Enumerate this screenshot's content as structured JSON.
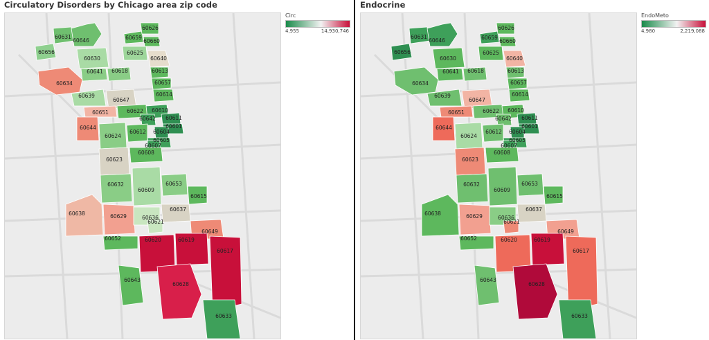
{
  "maps": [
    {
      "title": "Circulatory Disorders by Chicago area zip code",
      "legend": {
        "measure": "Circ",
        "min": "4,955",
        "max": "14,930,746",
        "low_color": "#1a8a4a",
        "mid_color": "#f2f2f2",
        "high_color": "#c8103a"
      },
      "zips": [
        {
          "zip": "60631",
          "fill": "#6fbf6f"
        },
        {
          "zip": "60646",
          "fill": "#6fbf6f"
        },
        {
          "zip": "60656",
          "fill": "#8fd08f"
        },
        {
          "zip": "60659",
          "fill": "#5db85d"
        },
        {
          "zip": "60626",
          "fill": "#5db85d"
        },
        {
          "zip": "60660",
          "fill": "#5db85d"
        },
        {
          "zip": "60625",
          "fill": "#9ed69b"
        },
        {
          "zip": "60630",
          "fill": "#a9dba5"
        },
        {
          "zip": "60640",
          "fill": "#e6ddcc"
        },
        {
          "zip": "60641",
          "fill": "#8acd86"
        },
        {
          "zip": "60618",
          "fill": "#8acd86"
        },
        {
          "zip": "60613",
          "fill": "#5db85d"
        },
        {
          "zip": "60634",
          "fill": "#ee8a76"
        },
        {
          "zip": "60657",
          "fill": "#5db85d"
        },
        {
          "zip": "60639",
          "fill": "#a9dba5"
        },
        {
          "zip": "60614",
          "fill": "#5db85d"
        },
        {
          "zip": "60647",
          "fill": "#d8d3c4"
        },
        {
          "zip": "60651",
          "fill": "#f2b4a4"
        },
        {
          "zip": "60622",
          "fill": "#5db85d"
        },
        {
          "zip": "60610",
          "fill": "#3ea05a"
        },
        {
          "zip": "60642",
          "fill": "#3ea05a"
        },
        {
          "zip": "60611",
          "fill": "#2f8f52"
        },
        {
          "zip": "60644",
          "fill": "#ee8a76"
        },
        {
          "zip": "60601",
          "fill": "#2f8f52"
        },
        {
          "zip": "60624",
          "fill": "#8acd86"
        },
        {
          "zip": "60612",
          "fill": "#5db85d"
        },
        {
          "zip": "60604",
          "fill": "#2f8f52"
        },
        {
          "zip": "60605",
          "fill": "#3ea05a"
        },
        {
          "zip": "60607",
          "fill": "#3ea05a"
        },
        {
          "zip": "60623",
          "fill": "#d8d3c4"
        },
        {
          "zip": "60608",
          "fill": "#5db85d"
        },
        {
          "zip": "60632",
          "fill": "#8acd86"
        },
        {
          "zip": "60609",
          "fill": "#a9dba5"
        },
        {
          "zip": "60653",
          "fill": "#8acd86"
        },
        {
          "zip": "60615",
          "fill": "#5db85d"
        },
        {
          "zip": "60638",
          "fill": "#efb8a5"
        },
        {
          "zip": "60629",
          "fill": "#f2a090"
        },
        {
          "zip": "60636",
          "fill": "#c9e6c0"
        },
        {
          "zip": "60637",
          "fill": "#d8d3c4"
        },
        {
          "zip": "60621",
          "fill": "#c9e6c0"
        },
        {
          "zip": "60649",
          "fill": "#ee8a76"
        },
        {
          "zip": "60652",
          "fill": "#5db85d"
        },
        {
          "zip": "60620",
          "fill": "#c8103a"
        },
        {
          "zip": "60619",
          "fill": "#c8103a"
        },
        {
          "zip": "60617",
          "fill": "#c8103a"
        },
        {
          "zip": "60643",
          "fill": "#5db85d"
        },
        {
          "zip": "60628",
          "fill": "#d81f4a"
        },
        {
          "zip": "60633",
          "fill": "#3ea05a"
        }
      ]
    },
    {
      "title": "Endocrine",
      "legend": {
        "measure": "EndoMeto",
        "min": "4,980",
        "max": "2,219,088",
        "low_color": "#1a8a4a",
        "mid_color": "#f2f2f2",
        "high_color": "#c8103a"
      },
      "zips": [
        {
          "zip": "60631",
          "fill": "#3ea05a"
        },
        {
          "zip": "60646",
          "fill": "#3ea05a"
        },
        {
          "zip": "60656",
          "fill": "#2f8f52"
        },
        {
          "zip": "60659",
          "fill": "#3ea05a"
        },
        {
          "zip": "60626",
          "fill": "#5db85d"
        },
        {
          "zip": "60660",
          "fill": "#5db85d"
        },
        {
          "zip": "60625",
          "fill": "#5db85d"
        },
        {
          "zip": "60630",
          "fill": "#5db85d"
        },
        {
          "zip": "60640",
          "fill": "#f2b4a4"
        },
        {
          "zip": "60641",
          "fill": "#5db85d"
        },
        {
          "zip": "60618",
          "fill": "#6fbf6f"
        },
        {
          "zip": "60613",
          "fill": "#6fbf6f"
        },
        {
          "zip": "60634",
          "fill": "#6fbf6f"
        },
        {
          "zip": "60657",
          "fill": "#5db85d"
        },
        {
          "zip": "60639",
          "fill": "#6fbf6f"
        },
        {
          "zip": "60614",
          "fill": "#5db85d"
        },
        {
          "zip": "60647",
          "fill": "#f2b4a4"
        },
        {
          "zip": "60651",
          "fill": "#ee8a76"
        },
        {
          "zip": "60622",
          "fill": "#6fbf6f"
        },
        {
          "zip": "60610",
          "fill": "#5db85d"
        },
        {
          "zip": "60642",
          "fill": "#6fbf6f"
        },
        {
          "zip": "60611",
          "fill": "#2f8f52"
        },
        {
          "zip": "60644",
          "fill": "#ee6a5a"
        },
        {
          "zip": "60601",
          "fill": "#2f8f52"
        },
        {
          "zip": "60624",
          "fill": "#a9dba5"
        },
        {
          "zip": "60612",
          "fill": "#6fbf6f"
        },
        {
          "zip": "60604",
          "fill": "#2f8f52"
        },
        {
          "zip": "60605",
          "fill": "#3ea05a"
        },
        {
          "zip": "60607",
          "fill": "#3ea05a"
        },
        {
          "zip": "60623",
          "fill": "#ee8a76"
        },
        {
          "zip": "60608",
          "fill": "#5db85d"
        },
        {
          "zip": "60632",
          "fill": "#6fbf6f"
        },
        {
          "zip": "60609",
          "fill": "#6fbf6f"
        },
        {
          "zip": "60653",
          "fill": "#6fbf6f"
        },
        {
          "zip": "60615",
          "fill": "#5db85d"
        },
        {
          "zip": "60638",
          "fill": "#5db85d"
        },
        {
          "zip": "60629",
          "fill": "#f2a090"
        },
        {
          "zip": "60636",
          "fill": "#8acd86"
        },
        {
          "zip": "60637",
          "fill": "#d8d3c4"
        },
        {
          "zip": "60621",
          "fill": "#ee8a76"
        },
        {
          "zip": "60649",
          "fill": "#f2a090"
        },
        {
          "zip": "60652",
          "fill": "#5db85d"
        },
        {
          "zip": "60620",
          "fill": "#ee6a5a"
        },
        {
          "zip": "60619",
          "fill": "#c8103a"
        },
        {
          "zip": "60617",
          "fill": "#ee6a5a"
        },
        {
          "zip": "60643",
          "fill": "#6fbf6f"
        },
        {
          "zip": "60628",
          "fill": "#b00a3a"
        },
        {
          "zip": "60633",
          "fill": "#3ea05a"
        }
      ]
    }
  ]
}
